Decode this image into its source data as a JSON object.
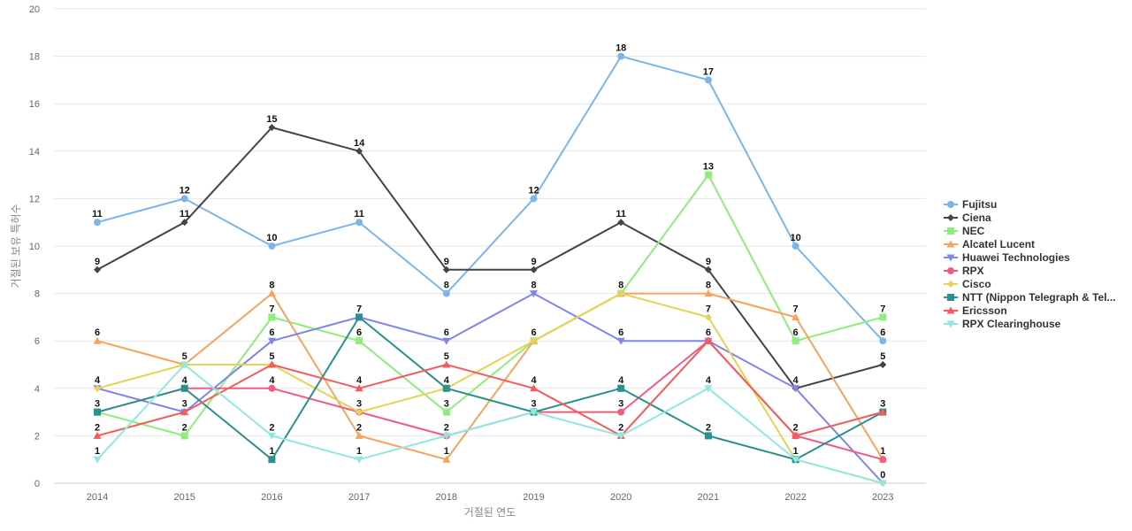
{
  "chart_data": {
    "type": "line",
    "xlabel": "거절된 연도",
    "ylabel": "거절된 보유 특허수",
    "ylim": [
      0,
      20
    ],
    "yticks": [
      0,
      2,
      4,
      6,
      8,
      10,
      12,
      14,
      16,
      18,
      20
    ],
    "categories": [
      "2014",
      "2015",
      "2016",
      "2017",
      "2018",
      "2019",
      "2020",
      "2021",
      "2022",
      "2023"
    ],
    "grid": true,
    "legend_position": "right",
    "series": [
      {
        "name": "Fujitsu",
        "color": "#7cb5ec",
        "marker": "circle",
        "values": [
          11,
          12,
          10,
          11,
          8,
          12,
          18,
          17,
          10,
          6
        ]
      },
      {
        "name": "Ciena",
        "color": "#434348",
        "marker": "diamond",
        "values": [
          9,
          11,
          15,
          14,
          9,
          9,
          11,
          9,
          4,
          5
        ]
      },
      {
        "name": "NEC",
        "color": "#90ed7d",
        "marker": "square",
        "values": [
          3,
          2,
          7,
          6,
          3,
          6,
          8,
          13,
          6,
          7
        ]
      },
      {
        "name": "Alcatel Lucent",
        "color": "#f7a35c",
        "marker": "triangle",
        "values": [
          6,
          5,
          8,
          2,
          1,
          6,
          8,
          8,
          7,
          1
        ]
      },
      {
        "name": "Huawei Technologies",
        "color": "#8085e9",
        "marker": "triangle-down",
        "values": [
          4,
          3,
          6,
          7,
          6,
          8,
          6,
          6,
          4,
          0
        ]
      },
      {
        "name": "RPX",
        "color": "#f15c80",
        "marker": "circle",
        "values": [
          3,
          4,
          4,
          3,
          2,
          3,
          3,
          6,
          2,
          1
        ]
      },
      {
        "name": "Cisco",
        "color": "#e4d354",
        "marker": "diamond",
        "values": [
          4,
          5,
          5,
          3,
          4,
          6,
          8,
          7,
          1,
          0
        ]
      },
      {
        "name": "NTT (Nippon Telegraph & Tel...",
        "color": "#2b908f",
        "marker": "square",
        "values": [
          3,
          4,
          1,
          7,
          4,
          3,
          4,
          2,
          1,
          3
        ]
      },
      {
        "name": "Ericsson",
        "color": "#f45b5b",
        "marker": "triangle",
        "values": [
          2,
          3,
          5,
          4,
          5,
          4,
          2,
          6,
          2,
          3
        ]
      },
      {
        "name": "RPX Clearinghouse",
        "color": "#91e8e1",
        "marker": "triangle-down",
        "values": [
          1,
          5,
          2,
          1,
          2,
          3,
          2,
          4,
          1,
          0
        ]
      }
    ],
    "data_labels": {
      "2014": [
        11,
        9,
        6,
        4,
        3,
        2,
        1
      ],
      "2015": [
        12,
        11,
        5,
        4,
        3,
        2
      ],
      "2016": [
        15,
        10,
        8,
        7,
        6,
        5,
        4,
        2,
        1
      ],
      "2017": [
        14,
        11,
        7,
        6,
        4,
        3,
        2,
        1
      ],
      "2018": [
        9,
        8,
        6,
        5,
        4,
        3,
        2,
        1
      ],
      "2019": [
        12,
        9,
        8,
        6,
        4,
        3
      ],
      "2020": [
        18,
        11,
        8,
        6,
        4,
        3,
        2
      ],
      "2021": [
        17,
        13,
        9,
        8,
        7,
        6,
        4,
        2
      ],
      "2022": [
        10,
        7,
        6,
        4,
        2,
        1
      ],
      "2023": [
        7,
        6,
        5,
        3,
        1,
        0
      ]
    }
  }
}
